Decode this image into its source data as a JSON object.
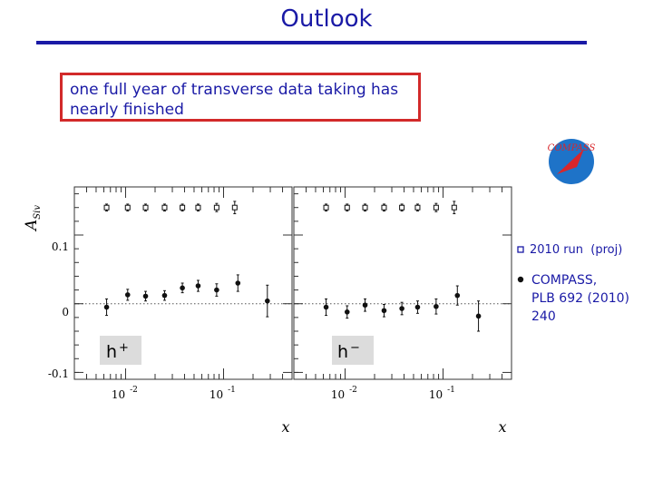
{
  "slide": {
    "title": "Outlook",
    "callout": "one full year of transverse data taking has nearly finished",
    "logo_text": "COMPASS"
  },
  "colors": {
    "title": "#1a1aa6",
    "callout_border": "#d22a2a",
    "legend_text": "#1a1aa6"
  },
  "chart_data": {
    "type": "scatter",
    "xscale": "log",
    "xlim": [
      0.003,
      0.5
    ],
    "ylim": [
      -0.11,
      0.17
    ],
    "ylabel": "A_Siv",
    "xlabel": "x",
    "ytick_labels": [
      "0.1",
      "0",
      "-0.1"
    ],
    "yticks": [
      0.1,
      0,
      -0.1
    ],
    "xtick_labels": [
      "10",
      "10"
    ],
    "xtick_exponents": [
      "-2",
      "-1"
    ],
    "xticks": [
      0.01,
      0.1
    ],
    "legend": [
      {
        "marker": "open-square",
        "label": "2010 run  (proj)"
      },
      {
        "marker": "filled-circle",
        "label_lines": [
          "COMPASS,",
          "PLB 692 (2010)",
          "240"
        ]
      }
    ],
    "panels": [
      {
        "name": "h+",
        "label": "h",
        "label_sup": "+",
        "series": [
          {
            "name": "2010 run (proj)",
            "marker": "open-square",
            "x": [
              0.0064,
              0.0105,
              0.016,
              0.025,
              0.038,
              0.055,
              0.085,
              0.13
            ],
            "y": [
              0.14,
              0.14,
              0.14,
              0.14,
              0.14,
              0.14,
              0.14,
              0.14
            ],
            "err": [
              0.005,
              0.005,
              0.005,
              0.005,
              0.005,
              0.005,
              0.006,
              0.009
            ]
          },
          {
            "name": "COMPASS, PLB 692 (2010) 240",
            "marker": "filled-circle",
            "x": [
              0.0064,
              0.0105,
              0.016,
              0.025,
              0.038,
              0.055,
              0.085,
              0.14,
              0.28
            ],
            "y": [
              -0.005,
              0.013,
              0.011,
              0.012,
              0.023,
              0.026,
              0.02,
              0.03,
              0.004
            ],
            "err": [
              0.012,
              0.008,
              0.007,
              0.007,
              0.007,
              0.008,
              0.009,
              0.012,
              0.023
            ]
          }
        ]
      },
      {
        "name": "h-",
        "label": "h",
        "label_sup": "−",
        "series": [
          {
            "name": "2010 run (proj)",
            "marker": "open-square",
            "x": [
              0.0064,
              0.0105,
              0.016,
              0.025,
              0.038,
              0.055,
              0.085,
              0.13
            ],
            "y": [
              0.14,
              0.14,
              0.14,
              0.14,
              0.14,
              0.14,
              0.14,
              0.14
            ],
            "err": [
              0.005,
              0.005,
              0.005,
              0.005,
              0.005,
              0.005,
              0.006,
              0.009
            ]
          },
          {
            "name": "COMPASS, PLB 692 (2010) 240",
            "marker": "filled-circle",
            "x": [
              0.0064,
              0.0105,
              0.016,
              0.025,
              0.038,
              0.055,
              0.085,
              0.14,
              0.23
            ],
            "y": [
              -0.005,
              -0.012,
              -0.002,
              -0.01,
              -0.007,
              -0.005,
              -0.004,
              0.012,
              -0.018
            ],
            "err": [
              0.012,
              0.009,
              0.009,
              0.009,
              0.009,
              0.009,
              0.011,
              0.014,
              0.022
            ]
          }
        ]
      }
    ]
  }
}
